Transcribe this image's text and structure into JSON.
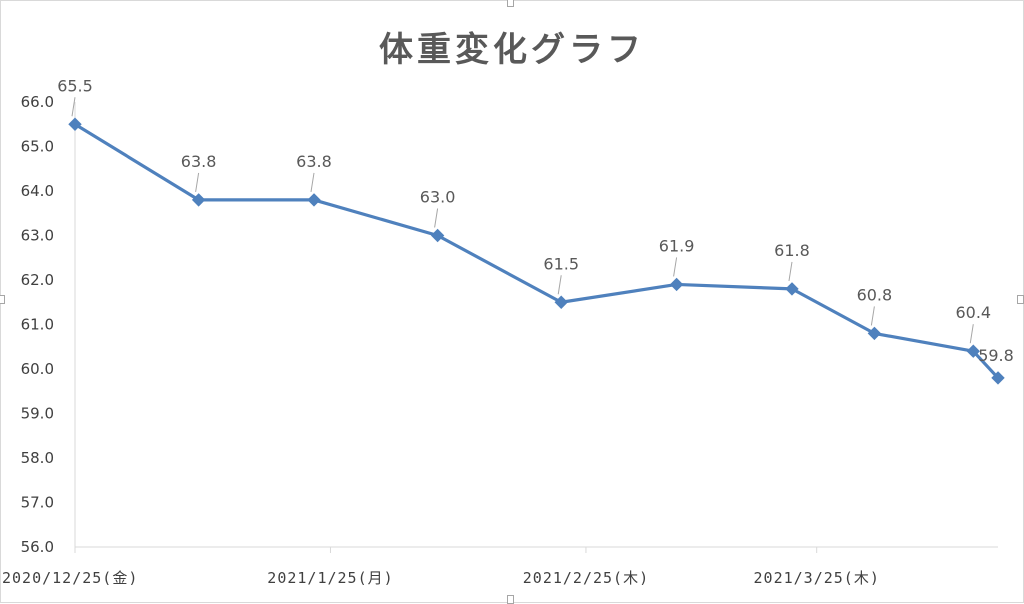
{
  "chart_data": {
    "type": "line",
    "title": "体重変化グラフ",
    "xlabel": "",
    "ylabel": "",
    "ylim": [
      56.0,
      66.0
    ],
    "y_ticks": [
      "56.0",
      "57.0",
      "58.0",
      "59.0",
      "60.0",
      "61.0",
      "62.0",
      "63.0",
      "64.0",
      "65.0",
      "66.0"
    ],
    "x_tick_labels": [
      "2020/12/25(金)",
      "2021/1/25(月)",
      "2021/2/25(木)",
      "2021/3/25(木)"
    ],
    "x_tick_dates": [
      "2020-12-25",
      "2021-01-25",
      "2021-02-25",
      "2021-03-25"
    ],
    "x_range": [
      "2020-12-25",
      "2021-04-16"
    ],
    "grid": false,
    "marker": "diamond",
    "color": "#4f81bd",
    "series": [
      {
        "points": [
          {
            "x": "2020-12-25",
            "y": 65.5
          },
          {
            "x": "2021-01-09",
            "y": 63.8
          },
          {
            "x": "2021-01-23",
            "y": 63.8
          },
          {
            "x": "2021-02-07",
            "y": 63.0
          },
          {
            "x": "2021-02-22",
            "y": 61.5
          },
          {
            "x": "2021-03-08",
            "y": 61.9
          },
          {
            "x": "2021-03-22",
            "y": 61.8
          },
          {
            "x": "2021-04-01",
            "y": 60.8
          },
          {
            "x": "2021-04-13",
            "y": 60.4
          },
          {
            "x": "2021-04-16",
            "y": 59.8
          }
        ],
        "data_labels": [
          "65.5",
          "63.8",
          "63.8",
          "63.0",
          "61.5",
          "61.9",
          "61.8",
          "60.8",
          "60.4",
          "59.8"
        ]
      }
    ]
  }
}
